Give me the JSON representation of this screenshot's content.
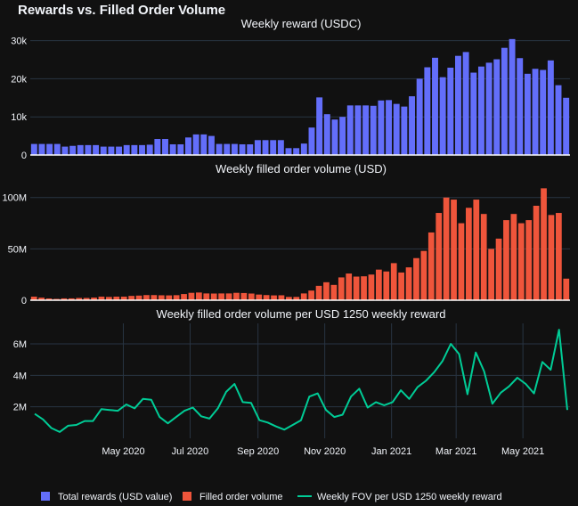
{
  "title": "Rewards vs. Filled Order Volume",
  "colors": {
    "background": "#111111",
    "grid": "#283442",
    "axis": "#f2f5fa",
    "rewards": "#636efa",
    "volume": "#ef553b",
    "fov": "#00cc96"
  },
  "legend": {
    "placement": "bottom",
    "items": [
      {
        "label": "Total rewards (USD value)",
        "color": "#636efa",
        "kind": "box"
      },
      {
        "label": "Filled order volume",
        "color": "#ef553b",
        "kind": "box"
      },
      {
        "label": "Weekly FOV per USD 1250 weekly reward",
        "color": "#00cc96",
        "kind": "line"
      }
    ]
  },
  "chart_data": [
    {
      "type": "bar",
      "title": "Weekly reward (USDC)",
      "series": [
        {
          "name": "Total rewards (USD value)",
          "color": "#636efa",
          "values": [
            2900,
            2900,
            2900,
            2900,
            2200,
            2400,
            2600,
            2600,
            2600,
            2200,
            2200,
            2200,
            2600,
            2600,
            2600,
            2700,
            4200,
            4200,
            2800,
            2800,
            4600,
            5400,
            5400,
            5000,
            2900,
            2900,
            2900,
            2800,
            2800,
            3900,
            3900,
            3900,
            3900,
            1800,
            1800,
            3000,
            7200,
            15100,
            10700,
            9300,
            10000,
            13000,
            13000,
            13000,
            12900,
            14300,
            14400,
            13400,
            12700,
            15400,
            20000,
            23000,
            25500,
            20400,
            22900,
            26000,
            27000,
            21600,
            23200,
            24200,
            25100,
            28100,
            30400,
            25400,
            21300,
            22600,
            22300,
            24800,
            18300,
            15000
          ]
        }
      ],
      "ylim": [
        0,
        32000
      ],
      "yticks": [
        "0",
        "10k",
        "20k",
        "30k"
      ],
      "ytick_values": [
        0,
        10000,
        20000,
        30000
      ],
      "grid": true
    },
    {
      "type": "bar",
      "title": "Weekly filled order volume (USD)",
      "series": [
        {
          "name": "Filled order volume",
          "color": "#ef553b",
          "values": [
            3500000,
            2500000,
            1700000,
            1300000,
            1800000,
            1800000,
            2200000,
            2200000,
            2600000,
            3500000,
            3200000,
            3500000,
            3500000,
            4200000,
            4500000,
            5000000,
            5000000,
            4800000,
            4700000,
            4900000,
            6000000,
            7200000,
            7500000,
            6600000,
            6500000,
            6600000,
            6600000,
            7200000,
            7000000,
            6500000,
            5500000,
            5000000,
            4700000,
            4800000,
            3200000,
            3200000,
            6600000,
            9400000,
            14000000,
            17500000,
            14900000,
            22200000,
            26000000,
            23000000,
            23300000,
            25000000,
            29800000,
            28000000,
            36100000,
            27000000,
            32000000,
            41000000,
            48000000,
            66000000,
            85000000,
            100000000,
            98000000,
            75000000,
            90000000,
            98000000,
            84000000,
            50000000,
            60000000,
            78000000,
            84000000,
            75000000,
            78000000,
            92000000,
            109000000,
            83000000,
            85000000,
            21000000
          ]
        }
      ],
      "ylim": [
        0,
        118000000
      ],
      "yticks": [
        "0",
        "50M",
        "100M"
      ],
      "ytick_values": [
        0,
        50000000,
        100000000
      ],
      "grid": true
    },
    {
      "type": "line",
      "title": "Weekly filled order volume per USD 1250 weekly reward",
      "series": [
        {
          "name": "Weekly FOV per USD 1250 weekly reward",
          "color": "#00cc96",
          "values": [
            1550000,
            1200000,
            650000,
            400000,
            800000,
            850000,
            1100000,
            1100000,
            1850000,
            1800000,
            1750000,
            2150000,
            1900000,
            2500000,
            2450000,
            1350000,
            950000,
            1350000,
            1750000,
            1950000,
            1400000,
            1250000,
            1900000,
            2950000,
            3450000,
            2300000,
            2250000,
            1150000,
            1000000,
            750000,
            550000,
            850000,
            1150000,
            2650000,
            2850000,
            1800000,
            1350000,
            1500000,
            2650000,
            3150000,
            1950000,
            2300000,
            2100000,
            2300000,
            3050000,
            2500000,
            3250000,
            3650000,
            4200000,
            4900000,
            6000000,
            5350000,
            2800000,
            5450000,
            4250000,
            2200000,
            2900000,
            3300000,
            3850000,
            3450000,
            2850000,
            4850000,
            4350000,
            6900000,
            1800000
          ]
        }
      ],
      "ylim": [
        0,
        7300000
      ],
      "yticks": [
        "2M",
        "4M",
        "6M"
      ],
      "ytick_values": [
        2000000,
        4000000,
        6000000
      ],
      "xlim": [
        "2020-02-06",
        "2021-06-13"
      ],
      "xticks": [
        "May 2020",
        "Jul 2020",
        "Sep 2020",
        "Nov 2020",
        "Jan 2021",
        "Mar 2021",
        "May 2021"
      ],
      "xtick_dates": [
        "2020-05-01",
        "2020-07-01",
        "2020-09-01",
        "2020-11-01",
        "2021-01-01",
        "2021-03-01",
        "2021-05-01"
      ],
      "grid": true
    }
  ]
}
